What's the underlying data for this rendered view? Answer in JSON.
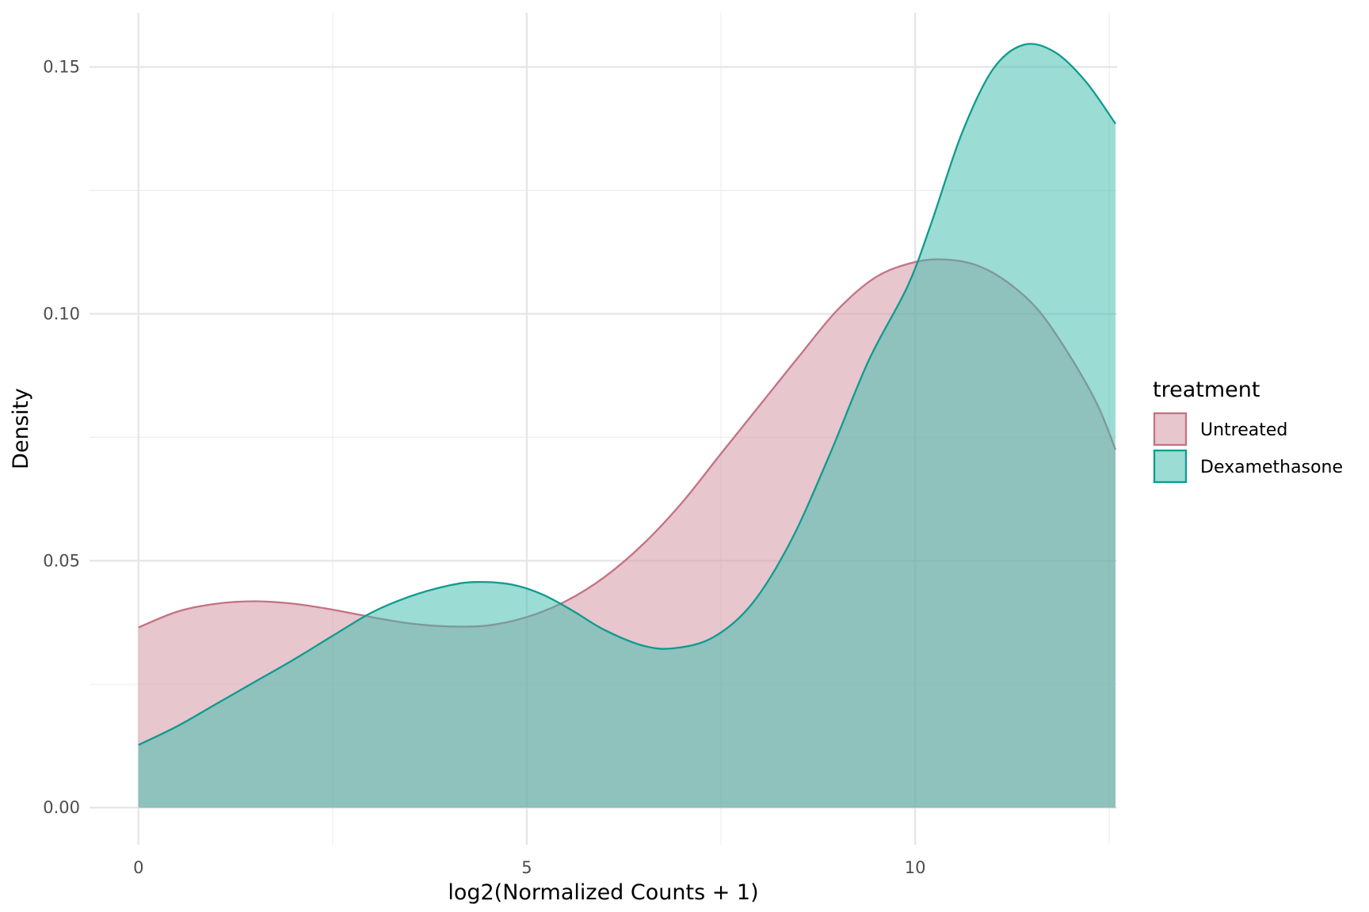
{
  "chart_data": {
    "type": "area",
    "title": "",
    "xlabel": "log2(Normalized Counts + 1)",
    "ylabel": "Density",
    "xlim": [
      -0.63,
      12.6
    ],
    "ylim": [
      -0.0075,
      0.161
    ],
    "x_ticks": [
      0,
      5,
      10
    ],
    "x_tick_labels": [
      "0",
      "5",
      "10"
    ],
    "y_ticks": [
      0.0,
      0.05,
      0.1,
      0.15
    ],
    "y_tick_labels": [
      "0.00",
      "0.05",
      "0.10",
      "0.15"
    ],
    "grid": true,
    "legend": {
      "title": "treatment",
      "position": "right"
    },
    "series": [
      {
        "name": "Untreated",
        "line_color": "#c47283",
        "fill_color": "#d497a5",
        "fill_opacity": 0.55,
        "x": [
          0,
          0.5,
          1,
          1.5,
          2,
          2.5,
          3,
          3.5,
          4,
          4.5,
          5,
          5.5,
          6,
          6.5,
          7,
          7.5,
          8,
          8.5,
          9,
          9.5,
          10,
          10.4,
          10.8,
          11.2,
          11.6,
          12,
          12.35,
          12.58
        ],
        "values": [
          0.0365,
          0.0397,
          0.0413,
          0.0418,
          0.0413,
          0.0401,
          0.0386,
          0.0373,
          0.0367,
          0.0369,
          0.0386,
          0.0418,
          0.0467,
          0.0534,
          0.0618,
          0.0717,
          0.0815,
          0.0913,
          0.1008,
          0.1075,
          0.1105,
          0.111,
          0.1098,
          0.1063,
          0.1005,
          0.0913,
          0.0815,
          0.0725
        ]
      },
      {
        "name": "Dexamethasone",
        "line_color": "#0f9b8e",
        "fill_color": "#3fbcae",
        "fill_opacity": 0.52,
        "x": [
          0,
          0.5,
          1,
          1.5,
          2,
          2.5,
          3,
          3.5,
          4,
          4.35,
          4.8,
          5.2,
          5.6,
          6,
          6.5,
          6.9,
          7.4,
          7.9,
          8.4,
          8.9,
          9.4,
          9.9,
          10.2,
          10.6,
          11,
          11.4,
          11.8,
          12.2,
          12.58
        ],
        "values": [
          0.0127,
          0.0165,
          0.021,
          0.0255,
          0.03,
          0.0348,
          0.0395,
          0.0428,
          0.045,
          0.0457,
          0.0452,
          0.0432,
          0.0398,
          0.036,
          0.0328,
          0.0323,
          0.0345,
          0.0413,
          0.054,
          0.0715,
          0.0905,
          0.1055,
          0.118,
          0.1365,
          0.1495,
          0.1545,
          0.153,
          0.147,
          0.1385
        ]
      }
    ]
  }
}
